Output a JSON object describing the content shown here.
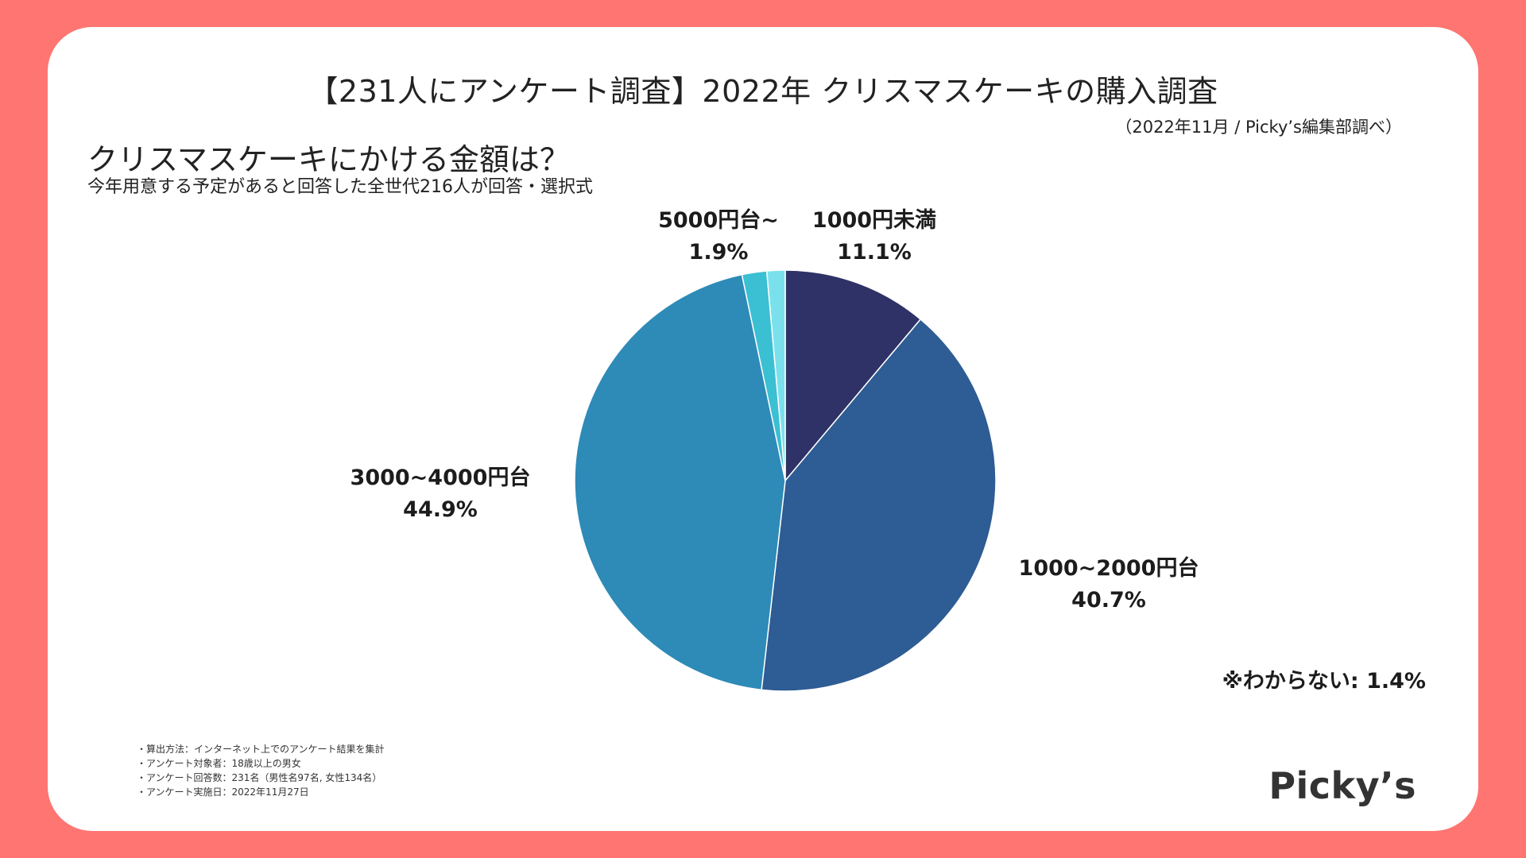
{
  "header": {
    "title": "【231人にアンケート調査】2022年 クリスマスケーキの購入調査",
    "source": "（2022年11月 / Picky’s編集部調べ）"
  },
  "question": {
    "title": "クリスマスケーキにかける金額は？",
    "subtitle": "今年用意する予定があると回答した全世代216人が回答・選択式"
  },
  "chart_data": {
    "type": "pie",
    "title": "クリスマスケーキにかける金額は？",
    "slices": [
      {
        "label": "1000円未満",
        "value": 11.1,
        "value_text": "11.1%",
        "color": "#2F3266"
      },
      {
        "label": "1000~2000円台",
        "value": 40.7,
        "value_text": "40.7%",
        "color": "#2E5C94"
      },
      {
        "label": "3000~4000円台",
        "value": 44.9,
        "value_text": "44.9%",
        "color": "#2E8AB7"
      },
      {
        "label": "5000円台~",
        "value": 1.9,
        "value_text": "1.9%",
        "color": "#3BBFD2"
      },
      {
        "label": "わからない",
        "value": 1.4,
        "value_text": "1.4%",
        "color": "#7AE1EC"
      }
    ],
    "start_angle": "12 o'clock",
    "direction": "clockwise",
    "note": "※わからない: 1.4%"
  },
  "methods": [
    "・算出方法：インターネット上でのアンケート結果を集計",
    "・アンケート対象者：18歳以上の男女",
    "・アンケート回答数：231名（男性名97名, 女性134名）",
    "・アンケート実施日：2022年11月27日"
  ],
  "brand": "Picky’s"
}
